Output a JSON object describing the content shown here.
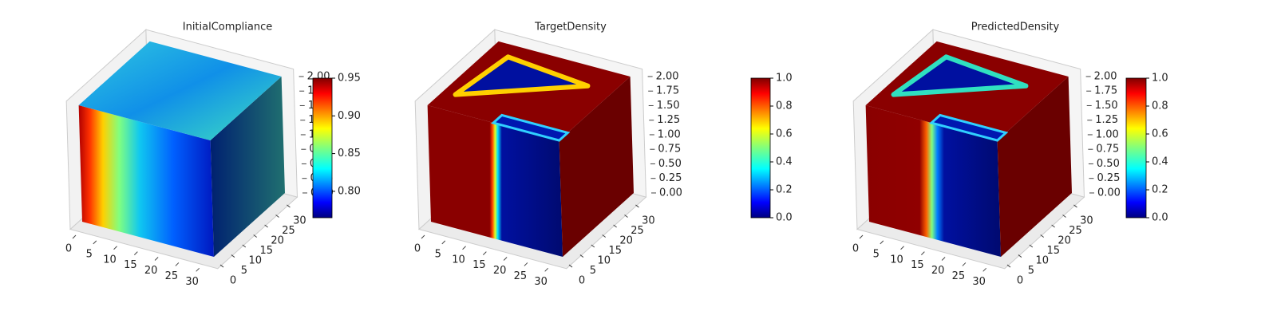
{
  "chart_data": [
    {
      "type": "voxel",
      "title": "InitialCompliance",
      "xlim": [
        0,
        32
      ],
      "ylim": [
        0,
        32
      ],
      "zlim": [
        0,
        2
      ],
      "xticks": [
        0,
        5,
        10,
        15,
        20,
        25,
        30
      ],
      "yticks": [
        0,
        5,
        10,
        15,
        20,
        25,
        30
      ],
      "zticks": [
        {
          "value": 0,
          "label": "0.00"
        },
        0.25,
        {
          "value": 0.5,
          "label": "0.50"
        },
        0.75,
        {
          "value": 1,
          "label": "1.00"
        },
        1.25,
        {
          "value": 1.5,
          "label": "1.50"
        },
        1.75,
        {
          "value": 2,
          "label": "2.00"
        }
      ],
      "colormap": "jet",
      "clim": [
        0.765,
        0.95
      ],
      "cticks": [
        {
          "value": 0.8,
          "label": "0.80"
        },
        0.85,
        {
          "value": 0.9,
          "label": "0.90"
        },
        0.95
      ]
    },
    {
      "type": "voxel",
      "title": "TargetDensity",
      "xlim": [
        0,
        32
      ],
      "ylim": [
        0,
        32
      ],
      "zlim": [
        0,
        2
      ],
      "xticks": [
        0,
        5,
        10,
        15,
        20,
        25,
        30
      ],
      "yticks": [
        0,
        5,
        10,
        15,
        20,
        25,
        30
      ],
      "zticks": [
        {
          "value": 0,
          "label": "0.00"
        },
        0.25,
        {
          "value": 0.5,
          "label": "0.50"
        },
        0.75,
        {
          "value": 1,
          "label": "1.00"
        },
        1.25,
        {
          "value": 1.5,
          "label": "1.50"
        },
        1.75,
        {
          "value": 2,
          "label": "2.00"
        }
      ],
      "colormap": "jet",
      "clim": [
        0,
        1
      ],
      "cticks": [
        {
          "value": 0,
          "label": "0.0"
        },
        0.2,
        0.4,
        0.6,
        0.8,
        {
          "value": 1,
          "label": "1.0"
        }
      ]
    },
    {
      "type": "voxel",
      "title": "PredictedDensity",
      "xlim": [
        0,
        32
      ],
      "ylim": [
        0,
        32
      ],
      "zlim": [
        0,
        2
      ],
      "xticks": [
        0,
        5,
        10,
        15,
        20,
        25,
        30
      ],
      "yticks": [
        0,
        5,
        10,
        15,
        20,
        25,
        30
      ],
      "zticks": [
        {
          "value": 0,
          "label": "0.00"
        },
        0.25,
        {
          "value": 0.5,
          "label": "0.50"
        },
        0.75,
        {
          "value": 1,
          "label": "1.00"
        },
        1.25,
        {
          "value": 1.5,
          "label": "1.50"
        },
        1.75,
        {
          "value": 2,
          "label": "2.00"
        }
      ],
      "colormap": "jet",
      "clim": [
        0,
        1
      ],
      "cticks": [
        {
          "value": 0,
          "label": "0.0"
        },
        0.2,
        0.4,
        0.6,
        0.8,
        {
          "value": 1,
          "label": "1.0"
        }
      ]
    }
  ]
}
